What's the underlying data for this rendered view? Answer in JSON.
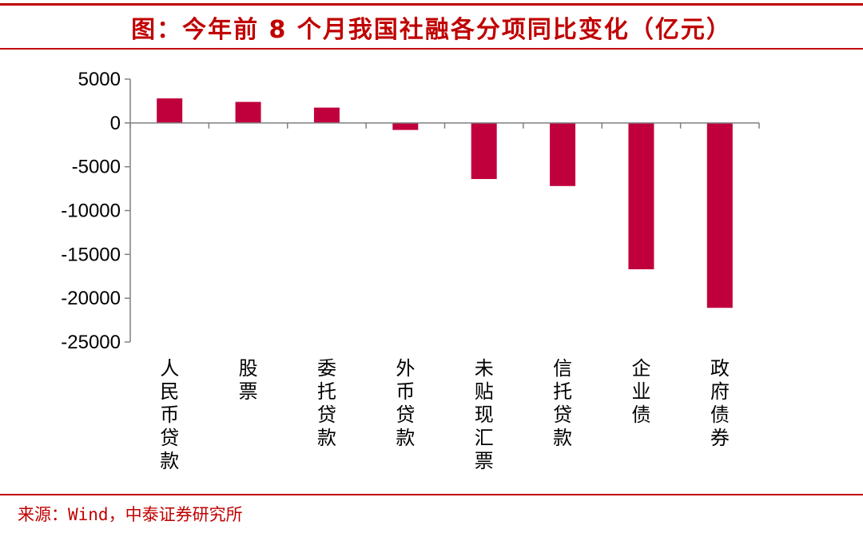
{
  "header": {
    "title": "图：今年前 8 个月我国社融各分项同比变化（亿元）"
  },
  "footer": {
    "source": "来源：Wind，中泰证券研究所"
  },
  "colors": {
    "bar": "#c0003c",
    "accent": "#c00000",
    "axis": "#808080"
  },
  "chart_data": {
    "type": "bar",
    "categories": [
      "人民币贷款",
      "股票",
      "委托贷款",
      "外币贷款",
      "未贴现汇票",
      "信托贷款",
      "企业债",
      "政府债券"
    ],
    "values": [
      2800,
      2400,
      1750,
      -800,
      -6400,
      -7200,
      -16700,
      -21100
    ],
    "title": "图：今年前 8 个月我国社融各分项同比变化（亿元）",
    "xlabel": "",
    "ylabel": "",
    "ylim": [
      -25000,
      5000
    ],
    "yticks": [
      5000,
      0,
      -5000,
      -10000,
      -15000,
      -20000,
      -25000
    ],
    "grid": false,
    "legend": "none"
  }
}
